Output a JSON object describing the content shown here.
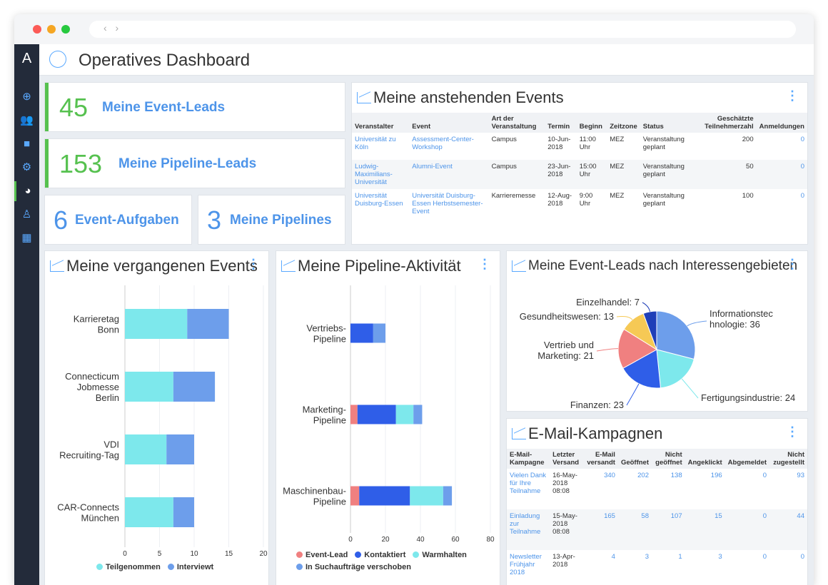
{
  "header": {
    "title": "Operatives Dashboard"
  },
  "sidebar": {
    "logo": "A",
    "items": [
      "add-icon",
      "contacts-icon",
      "folder-icon",
      "settings-icon",
      "dashboard-icon",
      "user-icon",
      "calendar-icon"
    ]
  },
  "kpis": [
    {
      "value": "45",
      "label": "Meine Event-Leads"
    },
    {
      "value": "153",
      "label": "Meine Pipeline-Leads"
    },
    {
      "value": "6",
      "label": "Event-Aufgaben"
    },
    {
      "value": "3",
      "label": "Meine Pipelines"
    }
  ],
  "upcoming": {
    "title": "Meine anstehenden Events",
    "columns": [
      "Veranstalter",
      "Event",
      "Art der Veranstaltung",
      "Termin",
      "Beginn",
      "Zeitzone",
      "Status",
      "Geschätzte Teilnehmerzahl",
      "Anmeldungen"
    ],
    "rows": [
      [
        "Universität zu Köln",
        "Assessment-Center-Workshop",
        "Campus",
        "10-Jun-2018",
        "11:00 Uhr",
        "MEZ",
        "Veranstaltung geplant",
        "200",
        "0"
      ],
      [
        "Ludwig-Maximilians-Universität",
        "Alumni-Event",
        "Campus",
        "23-Jun-2018",
        "15:00 Uhr",
        "MEZ",
        "Veranstaltung geplant",
        "50",
        "0"
      ],
      [
        "Universität Duisburg-Essen",
        "Universität Duisburg-Essen Herbstsemester-Event",
        "Karrieremesse",
        "12-Aug-2018",
        "9:00 Uhr",
        "MEZ",
        "Veranstaltung geplant",
        "100",
        "0"
      ]
    ]
  },
  "past": {
    "title": "Meine vergangenen Events"
  },
  "pipeline": {
    "title": "Meine Pipeline-Aktivität"
  },
  "interests": {
    "title": "Meine Event-Leads nach Interessengebieten"
  },
  "email": {
    "title": "E-Mail-Kampagnen",
    "columns": [
      "E-Mail-Kampagne",
      "Letzter Versand",
      "E-Mail versandt",
      "Geöffnet",
      "Nicht geöffnet",
      "Angeklickt",
      "Abgemeldet",
      "Nicht zugestellt"
    ],
    "rows": [
      [
        "Vielen Dank für Ihre Teilnahme",
        "16-May-2018 08:08",
        "340",
        "202",
        "138",
        "196",
        "0",
        "93"
      ],
      [
        "Einladung zur Teilnahme",
        "15-May-2018 08:08",
        "165",
        "58",
        "107",
        "15",
        "0",
        "44"
      ],
      [
        "Newsletter Frühjahr 2018",
        "13-Apr-2018",
        "4",
        "3",
        "1",
        "3",
        "0",
        "0"
      ]
    ]
  },
  "chart_data": [
    {
      "type": "bar",
      "orientation": "horizontal",
      "stacked": true,
      "categories": [
        "Karrieretag Bonn",
        "Connecticum Jobmesse Berlin",
        "VDI Recruiting-Tag",
        "CAR-Connects München"
      ],
      "series": [
        {
          "name": "Teilgenommen",
          "values": [
            9,
            7,
            6,
            7
          ],
          "color": "#7de8ec"
        },
        {
          "name": "Interviewt",
          "values": [
            6,
            6,
            4,
            3
          ],
          "color": "#6d9eeb"
        }
      ],
      "xlim": [
        0,
        20
      ],
      "xticks": [
        0,
        5,
        10,
        15,
        20
      ]
    },
    {
      "type": "bar",
      "orientation": "horizontal",
      "stacked": true,
      "categories": [
        "Vertriebs-Pipeline",
        "Marketing-Pipeline",
        "Maschinenbau-Pipeline"
      ],
      "series": [
        {
          "name": "Event-Lead",
          "values": [
            0,
            4,
            5
          ],
          "color": "#f08080"
        },
        {
          "name": "Kontaktiert",
          "values": [
            13,
            22,
            29
          ],
          "color": "#2f5ee8"
        },
        {
          "name": "Warmhalten",
          "values": [
            0,
            10,
            19
          ],
          "color": "#7de8ec"
        },
        {
          "name": "In Suchaufträge verschoben",
          "values": [
            7,
            5,
            5
          ],
          "color": "#6d9eeb"
        }
      ],
      "xlim": [
        0,
        80
      ],
      "xticks": [
        0,
        20,
        40,
        60,
        80
      ]
    },
    {
      "type": "pie",
      "labels": [
        "Informationstechnologie",
        "Fertigungsindustrie",
        "Finanzen",
        "Vertrieb und Marketing",
        "Gesundheitswesen",
        "Einzelhandel"
      ],
      "values": [
        36,
        24,
        23,
        21,
        13,
        7
      ],
      "colors": [
        "#6d9eeb",
        "#7de8ec",
        "#2f5ee8",
        "#f08080",
        "#f6c955",
        "#1f3fb8"
      ],
      "label_text": [
        "Informationstec hnologie: 36",
        "Fertigungsindustrie: 24",
        "Finanzen: 23",
        "Vertrieb und Marketing: 21",
        "Gesundheitswesen: 13",
        "Einzelhandel: 7"
      ]
    }
  ]
}
